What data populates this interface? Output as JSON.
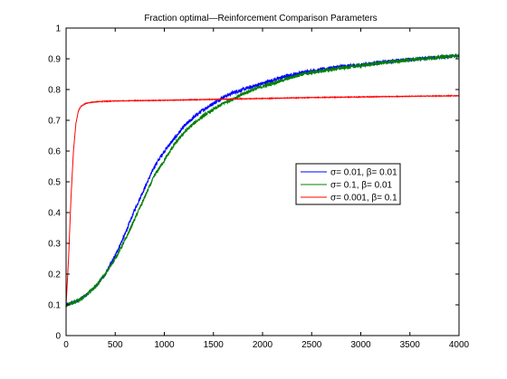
{
  "chart_data": {
    "type": "line",
    "title": "Fraction optimal—Reinforcement Comparison Parameters",
    "xlabel": "",
    "ylabel": "",
    "xlim": [
      0,
      4000
    ],
    "ylim": [
      0,
      1
    ],
    "x_ticks": [
      0,
      500,
      1000,
      1500,
      2000,
      2500,
      3000,
      3500,
      4000
    ],
    "y_ticks": [
      0,
      0.1,
      0.2,
      0.3,
      0.4,
      0.5,
      0.6,
      0.7,
      0.8,
      0.9,
      1
    ],
    "x_tick_labels": [
      "0",
      "500",
      "1000",
      "1500",
      "2000",
      "2500",
      "3000",
      "3500",
      "4000"
    ],
    "y_tick_labels": [
      "0",
      "0.1",
      "0.2",
      "0.3",
      "0.4",
      "0.5",
      "0.6",
      "0.7",
      "0.8",
      "0.9",
      "1"
    ],
    "grid": false,
    "legend": {
      "placement": "right-middle",
      "entries": [
        "σ= 0.01,  β= 0.01",
        "σ= 0.1,  β= 0.01",
        "σ= 0.001,  β= 0.1"
      ]
    },
    "series": [
      {
        "name": "σ= 0.01,  β= 0.01",
        "color": "#0000ff",
        "noise": 0.006,
        "x": [
          0,
          100,
          200,
          300,
          400,
          500,
          600,
          700,
          800,
          900,
          1000,
          1100,
          1200,
          1300,
          1400,
          1500,
          1600,
          1700,
          1800,
          1900,
          2000,
          2200,
          2400,
          2600,
          2800,
          3000,
          3200,
          3400,
          3600,
          3800,
          4000
        ],
        "y": [
          0.1,
          0.11,
          0.13,
          0.16,
          0.2,
          0.26,
          0.33,
          0.41,
          0.48,
          0.55,
          0.6,
          0.64,
          0.68,
          0.71,
          0.735,
          0.755,
          0.775,
          0.79,
          0.8,
          0.81,
          0.82,
          0.84,
          0.855,
          0.865,
          0.875,
          0.88,
          0.888,
          0.895,
          0.9,
          0.905,
          0.91
        ]
      },
      {
        "name": "σ= 0.1,  β= 0.01",
        "color": "#008000",
        "noise": 0.006,
        "x": [
          0,
          100,
          200,
          300,
          400,
          500,
          600,
          700,
          800,
          900,
          1000,
          1100,
          1200,
          1300,
          1400,
          1500,
          1600,
          1700,
          1800,
          1900,
          2000,
          2200,
          2400,
          2600,
          2800,
          3000,
          3200,
          3400,
          3600,
          3800,
          4000
        ],
        "y": [
          0.1,
          0.11,
          0.13,
          0.16,
          0.2,
          0.25,
          0.31,
          0.38,
          0.45,
          0.52,
          0.57,
          0.62,
          0.66,
          0.69,
          0.715,
          0.735,
          0.755,
          0.77,
          0.785,
          0.8,
          0.81,
          0.83,
          0.85,
          0.86,
          0.87,
          0.878,
          0.886,
          0.893,
          0.9,
          0.905,
          0.91
        ]
      },
      {
        "name": "σ= 0.001,  β= 0.1",
        "color": "#ff0000",
        "noise": 0.001,
        "x": [
          0,
          25,
          50,
          75,
          100,
          125,
          150,
          200,
          250,
          300,
          400,
          500,
          700,
          1000,
          1500,
          2000,
          2500,
          3000,
          3500,
          4000
        ],
        "y": [
          0.1,
          0.25,
          0.45,
          0.6,
          0.69,
          0.73,
          0.745,
          0.755,
          0.758,
          0.76,
          0.762,
          0.763,
          0.764,
          0.765,
          0.768,
          0.771,
          0.774,
          0.776,
          0.778,
          0.78
        ]
      }
    ]
  }
}
